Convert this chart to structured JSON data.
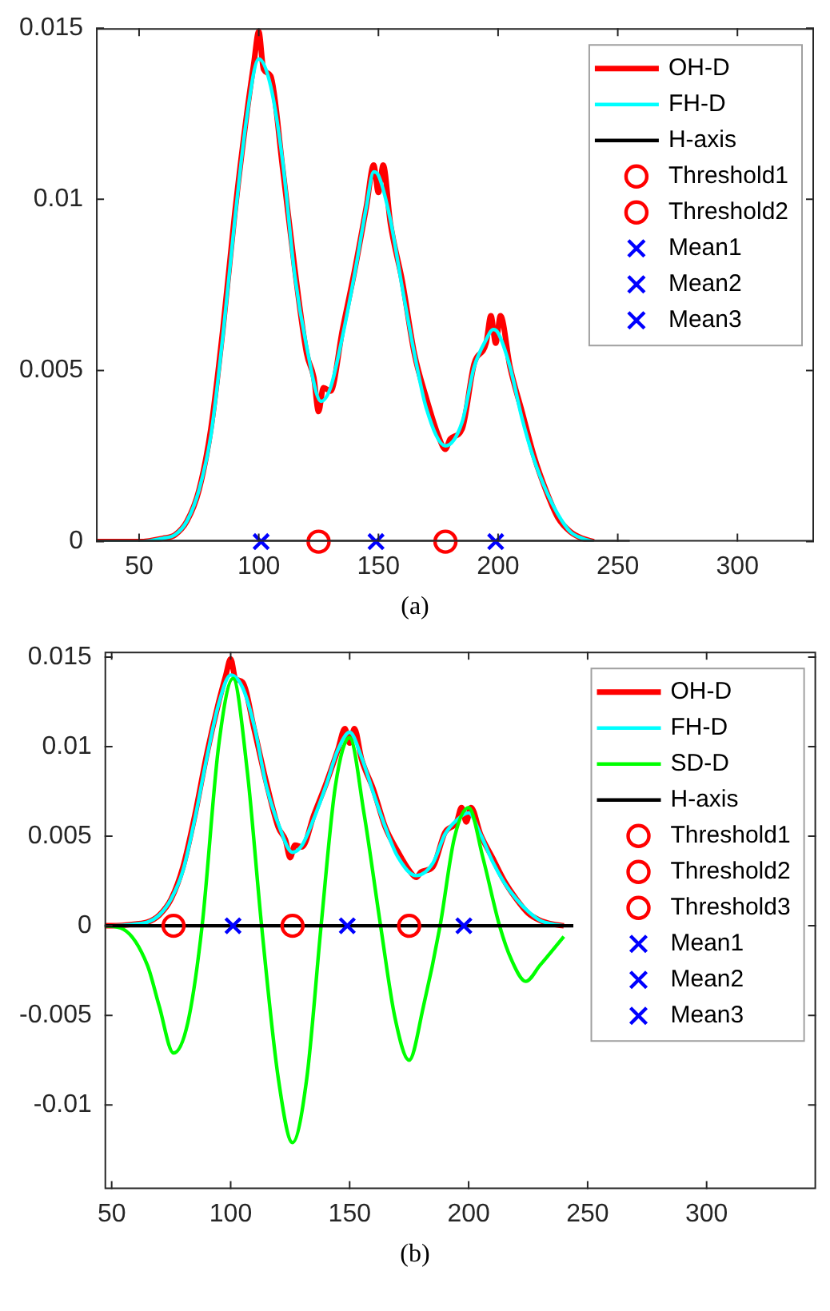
{
  "chart_data": [
    {
      "type": "line",
      "annotations": [
        "(a)"
      ],
      "xlim": [
        32,
        332
      ],
      "xticks": [
        50,
        100,
        150,
        200,
        250,
        300
      ],
      "ylim": [
        0,
        0.015
      ],
      "yticks": [
        0,
        0.005,
        0.01,
        0.015
      ],
      "grid": false,
      "legend": "top right",
      "series": [
        {
          "name": "OH-D",
          "type": "line",
          "color": "#ff0000",
          "x": [
            32,
            50,
            60,
            65,
            70,
            75,
            80,
            85,
            90,
            95,
            98,
            100,
            102,
            105,
            110,
            115,
            120,
            123,
            125,
            127,
            130,
            135,
            140,
            145,
            148,
            150,
            152,
            155,
            160,
            165,
            170,
            175,
            178,
            180,
            185,
            190,
            195,
            197,
            199,
            201,
            205,
            210,
            215,
            220,
            225,
            230,
            235,
            240
          ],
          "values": [
            0,
            0,
            0.0001,
            0.0002,
            0.0006,
            0.0015,
            0.0033,
            0.0062,
            0.0096,
            0.0125,
            0.014,
            0.0149,
            0.0138,
            0.0136,
            0.0109,
            0.008,
            0.0055,
            0.0048,
            0.0038,
            0.0045,
            0.0044,
            0.0062,
            0.0079,
            0.0098,
            0.011,
            0.0102,
            0.011,
            0.0093,
            0.0076,
            0.0055,
            0.0042,
            0.0031,
            0.0027,
            0.003,
            0.0033,
            0.0052,
            0.0058,
            0.0066,
            0.0058,
            0.0066,
            0.0051,
            0.0038,
            0.0025,
            0.0015,
            0.0007,
            0.0003,
            0.0001,
            0
          ]
        },
        {
          "name": "FH-D",
          "type": "line",
          "color": "#00ffff",
          "x": [
            32,
            50,
            60,
            65,
            70,
            75,
            80,
            85,
            90,
            95,
            100,
            105,
            110,
            115,
            120,
            126,
            130,
            135,
            140,
            145,
            148,
            150,
            155,
            160,
            165,
            170,
            178,
            185,
            190,
            195,
            198,
            200,
            205,
            210,
            215,
            220,
            225,
            230,
            235,
            240
          ],
          "values": [
            0,
            0,
            0.0001,
            0.0002,
            0.0006,
            0.0015,
            0.0031,
            0.006,
            0.0094,
            0.0124,
            0.0141,
            0.0133,
            0.0111,
            0.0078,
            0.0057,
            0.0041,
            0.0045,
            0.006,
            0.0078,
            0.0098,
            0.0108,
            0.0107,
            0.0094,
            0.0074,
            0.0055,
            0.0039,
            0.0028,
            0.0035,
            0.0051,
            0.0059,
            0.0062,
            0.0061,
            0.0051,
            0.0036,
            0.0024,
            0.0015,
            0.0008,
            0.0003,
            0.0001,
            0
          ]
        },
        {
          "name": "H-axis",
          "type": "line",
          "color": "#000000",
          "x": [
            32,
            255
          ],
          "values": [
            0,
            0
          ]
        },
        {
          "name": "Threshold1",
          "type": "scatter",
          "marker": "circle",
          "color": "#ff0000",
          "x": [
            125
          ],
          "values": [
            0
          ]
        },
        {
          "name": "Threshold2",
          "type": "scatter",
          "marker": "circle",
          "color": "#ff0000",
          "x": [
            178
          ],
          "values": [
            0
          ]
        },
        {
          "name": "Mean1",
          "type": "scatter",
          "marker": "cross",
          "color": "#0000ff",
          "x": [
            101
          ],
          "values": [
            0
          ]
        },
        {
          "name": "Mean2",
          "type": "scatter",
          "marker": "cross",
          "color": "#0000ff",
          "x": [
            149
          ],
          "values": [
            0
          ]
        },
        {
          "name": "Mean3",
          "type": "scatter",
          "marker": "cross",
          "color": "#0000ff",
          "x": [
            199
          ],
          "values": [
            0
          ]
        }
      ]
    },
    {
      "type": "line",
      "annotations": [
        "(b)"
      ],
      "xlim": [
        47,
        346
      ],
      "xticks": [
        50,
        100,
        150,
        200,
        250,
        300
      ],
      "ylim": [
        -0.0147,
        0.0153
      ],
      "yticks": [
        -0.01,
        -0.005,
        0,
        0.005,
        0.01,
        0.015
      ],
      "grid": false,
      "legend": "top right",
      "series": [
        {
          "name": "OH-D",
          "type": "line",
          "color": "#ff0000",
          "x": [
            47,
            50,
            60,
            65,
            70,
            75,
            80,
            85,
            90,
            95,
            98,
            100,
            102,
            105,
            110,
            115,
            120,
            123,
            125,
            127,
            130,
            135,
            140,
            145,
            148,
            150,
            152,
            155,
            160,
            165,
            170,
            175,
            178,
            180,
            185,
            190,
            195,
            197,
            199,
            201,
            205,
            210,
            215,
            220,
            225,
            230,
            235,
            240
          ],
          "values": [
            0,
            0,
            0.0001,
            0.0002,
            0.0006,
            0.0015,
            0.0033,
            0.0062,
            0.0096,
            0.0125,
            0.014,
            0.0149,
            0.0138,
            0.0136,
            0.0109,
            0.008,
            0.0055,
            0.0048,
            0.0038,
            0.0045,
            0.0044,
            0.0062,
            0.0079,
            0.0098,
            0.011,
            0.0102,
            0.011,
            0.0093,
            0.0076,
            0.0055,
            0.0042,
            0.0031,
            0.0027,
            0.003,
            0.0033,
            0.0052,
            0.0058,
            0.0066,
            0.0058,
            0.0066,
            0.0051,
            0.0038,
            0.0025,
            0.0015,
            0.0007,
            0.0003,
            0.0001,
            0
          ]
        },
        {
          "name": "FH-D",
          "type": "line",
          "color": "#00ffff",
          "x": [
            47,
            50,
            60,
            65,
            70,
            75,
            80,
            85,
            90,
            95,
            100,
            105,
            110,
            115,
            120,
            126,
            130,
            135,
            140,
            145,
            150,
            155,
            160,
            165,
            170,
            178,
            185,
            190,
            195,
            200,
            205,
            210,
            215,
            220,
            225,
            230,
            235,
            240
          ],
          "values": [
            0,
            0,
            0.0001,
            0.0002,
            0.0006,
            0.0015,
            0.0031,
            0.006,
            0.0094,
            0.0124,
            0.014,
            0.0133,
            0.0111,
            0.0078,
            0.0057,
            0.0041,
            0.0045,
            0.006,
            0.0078,
            0.0098,
            0.0108,
            0.0094,
            0.0074,
            0.0055,
            0.0039,
            0.0028,
            0.0035,
            0.0051,
            0.0059,
            0.0063,
            0.0051,
            0.0036,
            0.0024,
            0.0015,
            0.0008,
            0.0003,
            0.0001,
            0
          ]
        },
        {
          "name": "SD-D",
          "type": "line",
          "color": "#00ff00",
          "x": [
            47,
            55,
            65,
            70,
            76,
            82,
            88,
            95,
            101,
            107,
            113,
            120,
            126,
            132,
            138,
            144,
            150,
            156,
            163,
            169,
            175,
            181,
            188,
            194,
            200,
            206,
            213,
            218,
            224,
            230,
            240
          ],
          "values": [
            0,
            -0.0002,
            -0.0022,
            -0.0045,
            -0.0071,
            -0.0054,
            0,
            0.0101,
            0.0138,
            0.0086,
            0,
            -0.0085,
            -0.0121,
            -0.0085,
            0,
            0.0078,
            0.0105,
            0.0063,
            0,
            -0.0051,
            -0.0075,
            -0.0045,
            0,
            0.0049,
            0.0066,
            0.0038,
            0,
            -0.0019,
            -0.0031,
            -0.0022,
            -0.0006
          ]
        },
        {
          "name": "H-axis",
          "type": "line",
          "color": "#000000",
          "x": [
            47,
            244
          ],
          "values": [
            0,
            0
          ]
        },
        {
          "name": "Threshold1",
          "type": "scatter",
          "marker": "circle",
          "color": "#ff0000",
          "x": [
            76
          ],
          "values": [
            0
          ]
        },
        {
          "name": "Threshold2",
          "type": "scatter",
          "marker": "circle",
          "color": "#ff0000",
          "x": [
            126
          ],
          "values": [
            0
          ]
        },
        {
          "name": "Threshold3",
          "type": "scatter",
          "marker": "circle",
          "color": "#ff0000",
          "x": [
            175
          ],
          "values": [
            0
          ]
        },
        {
          "name": "Mean1",
          "type": "scatter",
          "marker": "cross",
          "color": "#0000ff",
          "x": [
            101
          ],
          "values": [
            0
          ]
        },
        {
          "name": "Mean2",
          "type": "scatter",
          "marker": "cross",
          "color": "#0000ff",
          "x": [
            149
          ],
          "values": [
            0
          ]
        },
        {
          "name": "Mean3",
          "type": "scatter",
          "marker": "cross",
          "color": "#0000ff",
          "x": [
            198
          ],
          "values": [
            0
          ]
        }
      ]
    }
  ]
}
